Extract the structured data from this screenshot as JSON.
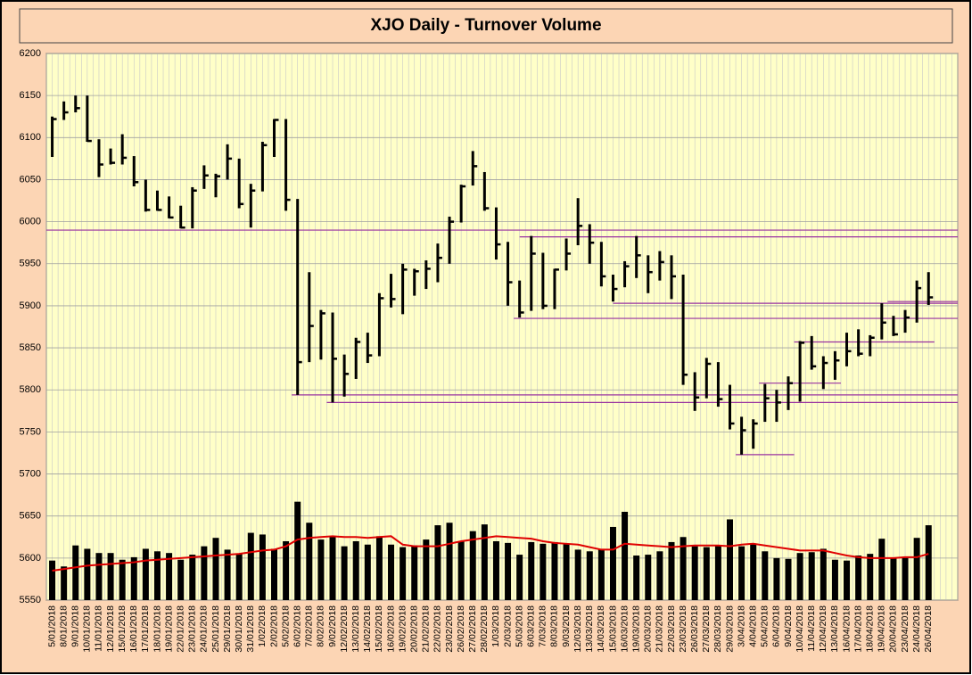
{
  "chart_data": {
    "type": "ohlc",
    "title": "XJO Daily - Turnover Volume",
    "categories": [
      "5/01/2018",
      "8/01/2018",
      "9/01/2018",
      "10/01/2018",
      "11/01/2018",
      "12/01/2018",
      "15/01/2018",
      "16/01/2018",
      "17/01/2018",
      "18/01/2018",
      "19/01/2018",
      "22/01/2018",
      "23/01/2018",
      "24/01/2018",
      "25/01/2018",
      "29/01/2018",
      "30/01/2018",
      "31/01/2018",
      "1/02/2018",
      "2/02/2018",
      "5/02/2018",
      "6/02/2018",
      "7/02/2018",
      "8/02/2018",
      "9/02/2018",
      "12/02/2018",
      "13/02/2018",
      "14/02/2018",
      "15/02/2018",
      "16/02/2018",
      "19/02/2018",
      "20/02/2018",
      "21/02/2018",
      "22/02/2018",
      "23/02/2018",
      "26/02/2018",
      "27/02/2018",
      "28/02/2018",
      "1/03/2018",
      "2/03/2018",
      "5/03/2018",
      "6/03/2018",
      "7/03/2018",
      "8/03/2018",
      "9/03/2018",
      "12/03/2018",
      "13/03/2018",
      "14/03/2018",
      "15/03/2018",
      "16/03/2018",
      "19/03/2018",
      "20/03/2018",
      "21/03/2018",
      "22/03/2018",
      "23/03/2018",
      "26/03/2018",
      "27/03/2018",
      "28/03/2018",
      "29/03/2018",
      "3/04/2018",
      "4/04/2018",
      "5/04/2018",
      "6/04/2018",
      "9/04/2018",
      "10/04/2018",
      "11/04/2018",
      "12/04/2018",
      "13/04/2018",
      "16/04/2018",
      "17/04/2018",
      "18/04/2018",
      "19/04/2018",
      "20/04/2018",
      "23/04/2018",
      "24/04/2018",
      "26/04/2018"
    ],
    "high": [
      6125,
      6143,
      6150,
      6150,
      6098,
      6087,
      6104,
      6078,
      6050,
      6037,
      6030,
      6019,
      6041,
      6067,
      6057,
      6092,
      6075,
      6045,
      6095,
      6122,
      6122,
      6027,
      5940,
      5895,
      5892,
      5842,
      5862,
      5868,
      5915,
      5938,
      5950,
      5944,
      5954,
      5974,
      6006,
      6044,
      6084,
      6059,
      6017,
      5976,
      5930,
      5983,
      5963,
      5944,
      5980,
      6028,
      5997,
      5976,
      5937,
      5953,
      5983,
      5960,
      5965,
      5960,
      5937,
      5821,
      5838,
      5833,
      5806,
      5768,
      5765,
      5807,
      5800,
      5816,
      5858,
      5864,
      5840,
      5846,
      5868,
      5872,
      5865,
      5903,
      5888,
      5895,
      5930,
      5940
    ],
    "low": [
      6077,
      6121,
      6130,
      6095,
      6053,
      6068,
      6068,
      6042,
      6012,
      6013,
      6004,
      5992,
      5992,
      6039,
      6029,
      6050,
      6016,
      5993,
      6036,
      6077,
      6013,
      5794,
      5833,
      5836,
      5785,
      5792,
      5813,
      5832,
      5840,
      5898,
      5890,
      5912,
      5920,
      5928,
      5950,
      5999,
      6043,
      6013,
      5955,
      5900,
      5886,
      5894,
      5896,
      5896,
      5942,
      5972,
      5950,
      5923,
      5905,
      5922,
      5933,
      5915,
      5930,
      5908,
      5806,
      5775,
      5790,
      5780,
      5753,
      5723,
      5730,
      5762,
      5762,
      5776,
      5786,
      5824,
      5801,
      5812,
      5828,
      5840,
      5840,
      5860,
      5864,
      5868,
      5880,
      5901
    ],
    "close": [
      6122,
      6130,
      6135,
      6096,
      6068,
      6070,
      6076,
      6047,
      6014,
      6014,
      6005,
      5993,
      6037,
      6055,
      6054,
      6075,
      6021,
      6037,
      6091,
      6121,
      6026,
      5833,
      5876,
      5891,
      5837,
      5819,
      5857,
      5841,
      5909,
      5908,
      5943,
      5941,
      5944,
      5957,
      6000,
      6042,
      6066,
      6016,
      5973,
      5928,
      5892,
      5962,
      5900,
      5943,
      5962,
      5995,
      5975,
      5935,
      5920,
      5947,
      5960,
      5940,
      5952,
      5935,
      5818,
      5791,
      5831,
      5789,
      5760,
      5752,
      5760,
      5790,
      5785,
      5808,
      5856,
      5828,
      5832,
      5835,
      5846,
      5843,
      5862,
      5880,
      5866,
      5886,
      5921,
      5910
    ],
    "volume": [
      5597,
      5590,
      5615,
      5611,
      5606,
      5606,
      5598,
      5601,
      5611,
      5608,
      5606,
      5598,
      5604,
      5614,
      5624,
      5610,
      5605,
      5630,
      5628,
      5611,
      5620,
      5667,
      5642,
      5622,
      5626,
      5614,
      5620,
      5616,
      5626,
      5616,
      5613,
      5615,
      5622,
      5639,
      5642,
      5620,
      5632,
      5640,
      5620,
      5618,
      5604,
      5619,
      5617,
      5619,
      5617,
      5610,
      5608,
      5611,
      5637,
      5655,
      5603,
      5604,
      5608,
      5619,
      5625,
      5614,
      5613,
      5615,
      5646,
      5614,
      5617,
      5608,
      5600,
      5599,
      5606,
      5607,
      5611,
      5598,
      5597,
      5603,
      5605,
      5623,
      5600,
      5600,
      5624,
      5639
    ],
    "volume_ma": [
      5585,
      5587,
      5589,
      5591,
      5592,
      5593,
      5594,
      5595,
      5597,
      5598,
      5599,
      5600,
      5601,
      5602,
      5603,
      5604,
      5605,
      5607,
      5609,
      5610,
      5614,
      5622,
      5624,
      5625,
      5626,
      5625,
      5625,
      5624,
      5625,
      5626,
      5616,
      5614,
      5614,
      5614,
      5617,
      5620,
      5622,
      5624,
      5626,
      5625,
      5624,
      5623,
      5620,
      5618,
      5617,
      5616,
      5613,
      5610,
      5610,
      5617,
      5616,
      5615,
      5614,
      5613,
      5614,
      5615,
      5615,
      5615,
      5614,
      5616,
      5617,
      5615,
      5613,
      5611,
      5609,
      5609,
      5609,
      5606,
      5603,
      5601,
      5600,
      5600,
      5600,
      5601,
      5601,
      5605
    ],
    "ohlc_color": "#000000",
    "volume_color": "#000000",
    "volume_ma_color": "#e00000",
    "level_color": "#9932a0",
    "levels": [
      {
        "value": 5990,
        "from": -0.5,
        "to": 77.5
      },
      {
        "value": 5982,
        "from": 40,
        "to": 77.5
      },
      {
        "value": 5903,
        "from": 48,
        "to": 77.5
      },
      {
        "value": 5905,
        "from": 71.5,
        "to": 77.5
      },
      {
        "value": 5885,
        "from": 39.5,
        "to": 77.5
      },
      {
        "value": 5857,
        "from": 63.5,
        "to": 75.5
      },
      {
        "value": 5808,
        "from": 60.5,
        "to": 67.5
      },
      {
        "value": 5794,
        "from": 20.5,
        "to": 77.5
      },
      {
        "value": 5785,
        "from": 23.5,
        "to": 77.5
      },
      {
        "value": 5723,
        "from": 58.5,
        "to": 63.5
      }
    ],
    "ylim": [
      5550,
      6200
    ],
    "yticks": [
      5550,
      5600,
      5650,
      5700,
      5750,
      5800,
      5850,
      5900,
      5950,
      6000,
      6050,
      6100,
      6150,
      6200
    ],
    "grid": true
  }
}
